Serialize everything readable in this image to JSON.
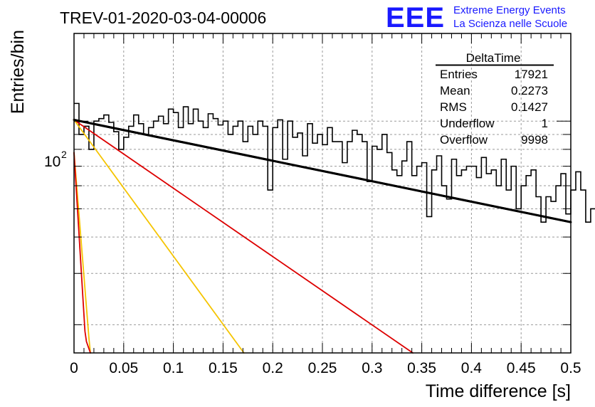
{
  "header": {
    "run_id": "TREV-01-2020-03-04-00006",
    "logo_text": "EEE",
    "org_line1": "Extreme Energy Events",
    "org_line2": "La Scienza nelle Scuole"
  },
  "stats_box": {
    "title": "DeltaTime",
    "rows": [
      {
        "label": "Entries",
        "value": "17921"
      },
      {
        "label": "Mean",
        "value": "0.2273"
      },
      {
        "label": "RMS",
        "value": "0.1427"
      },
      {
        "label": "Underflow",
        "value": "1"
      },
      {
        "label": "Overflow",
        "value": "9998"
      }
    ]
  },
  "colors": {
    "histogram": "#000000",
    "fit_total": "#000000",
    "fit_red": "#dd0000",
    "fit_yellow": "#f5c400",
    "logo": "#1a1aff",
    "grid": "#999999"
  },
  "chart_data": {
    "type": "line",
    "title": "TREV-01-2020-03-04-00006",
    "xlabel": "Time difference [s]",
    "ylabel": "Entries/bin",
    "xlim": [
      0,
      0.5
    ],
    "ylim": [
      16,
      200
    ],
    "yscale": "log",
    "grid": true,
    "x_ticks": [
      "0",
      "0.05",
      "0.1",
      "0.15",
      "0.2",
      "0.25",
      "0.3",
      "0.35",
      "0.4",
      "0.45",
      "0.5"
    ],
    "y_tick_base": "10",
    "y_tick_exp": "2",
    "bin_width": 0.005,
    "histogram": [
      115,
      90,
      96,
      80,
      100,
      102,
      105,
      99,
      92,
      80,
      88,
      96,
      105,
      98,
      90,
      95,
      100,
      104,
      98,
      110,
      107,
      95,
      112,
      98,
      110,
      100,
      95,
      106,
      102,
      97,
      100,
      90,
      96,
      100,
      85,
      96,
      90,
      100,
      96,
      58,
      95,
      101,
      74,
      100,
      88,
      91,
      76,
      98,
      84,
      90,
      83,
      95,
      85,
      85,
      72,
      85,
      93,
      90,
      85,
      62,
      82,
      80,
      90,
      78,
      68,
      65,
      73,
      85,
      65,
      70,
      72,
      47,
      68,
      76,
      60,
      54,
      74,
      65,
      68,
      70,
      70,
      64,
      75,
      66,
      68,
      60,
      74,
      58,
      70,
      50,
      60,
      65,
      68,
      55,
      45,
      55,
      53,
      60,
      66,
      48,
      58,
      67,
      58,
      45,
      50,
      52,
      66,
      57,
      62,
      60,
      70,
      68,
      45,
      58,
      62,
      51,
      46,
      42,
      48,
      42,
      44,
      52,
      59,
      47,
      55,
      57,
      63,
      41,
      56,
      41,
      48,
      55,
      46,
      54,
      63,
      52,
      45,
      47,
      60,
      49,
      58,
      52,
      46,
      59,
      52,
      47,
      42,
      50,
      57,
      49,
      49,
      54,
      52,
      53,
      66,
      46,
      58,
      61,
      49,
      51,
      56,
      46,
      44,
      55,
      47,
      48,
      45,
      55,
      53,
      59,
      50,
      48,
      45,
      55,
      47,
      58,
      49,
      45,
      51,
      42,
      40,
      47,
      56,
      50,
      49,
      52,
      47,
      39,
      48,
      46,
      43,
      45,
      40,
      38,
      44,
      46,
      41,
      38,
      45,
      41
    ],
    "fits": [
      {
        "color": "#000000",
        "x": [
          0,
          0.5
        ],
        "y": [
          101,
          45
        ]
      },
      {
        "color": "#dd0000",
        "x": [
          0,
          0.341
        ],
        "y": [
          101,
          16
        ]
      },
      {
        "color": "#f5c400",
        "x": [
          0,
          0.171
        ],
        "y": [
          101,
          16
        ]
      },
      {
        "color": "#f5c400",
        "x": [
          0,
          0.015,
          0.0165
        ],
        "y": [
          78,
          18,
          16
        ]
      },
      {
        "color": "#dd0000",
        "x": [
          0,
          0.011,
          0.0125,
          0.0165
        ],
        "y": [
          78,
          19,
          17.5,
          16
        ]
      }
    ]
  }
}
